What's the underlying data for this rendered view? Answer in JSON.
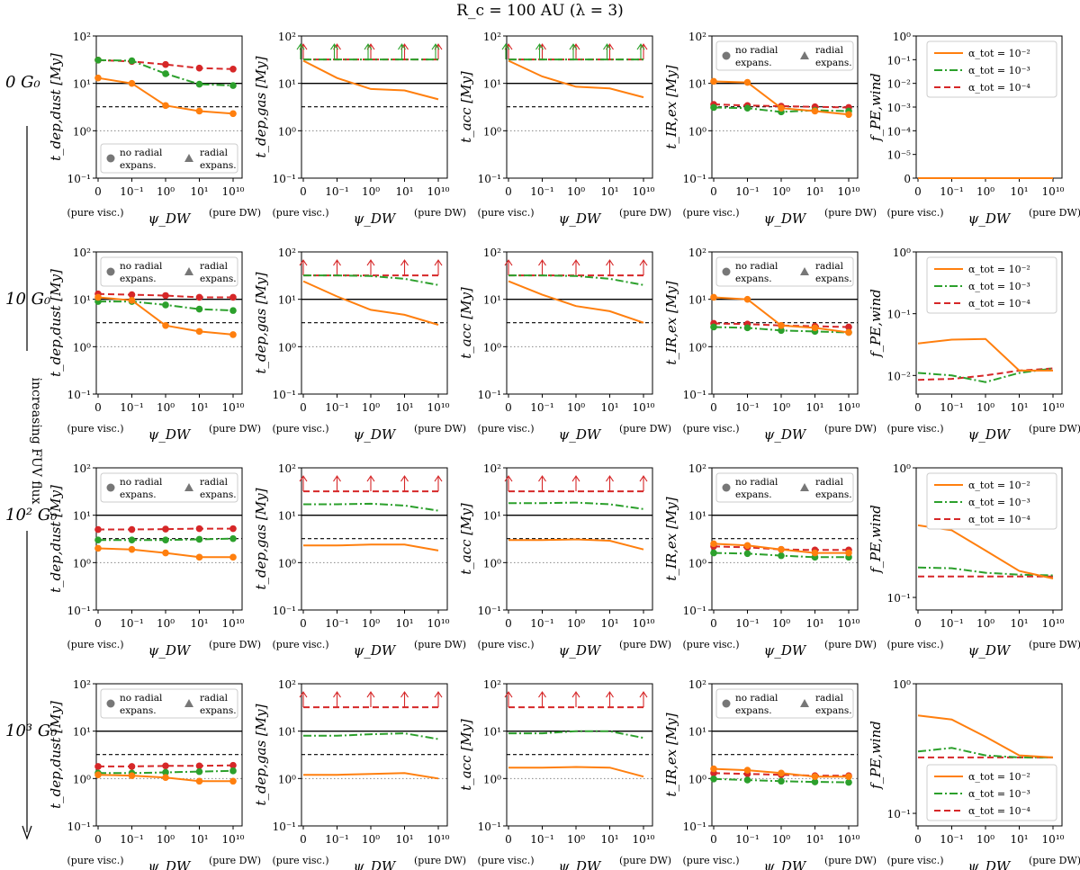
{
  "figure": {
    "title": "R_c = 100 AU (λ = 3)",
    "row_labels": [
      "0 G₀",
      "10 G₀",
      "10² G₀",
      "10³ G₀"
    ],
    "side_label": "increasing FUV flux",
    "x_ticks": [
      "0",
      "10⁻¹",
      "10⁰",
      "10¹",
      "10¹⁰"
    ],
    "x_edge_left": "(pure visc.)",
    "x_edge_right": "(pure DW)",
    "x_axis_label": "ψ_DW",
    "panel_ylabels": [
      "t_dep,dust [My]",
      "t_dep,gas [My]",
      "t_acc [My]",
      "t_IR,ex [My]",
      "f_PE,wind"
    ],
    "log_ticks": [
      "10⁻¹",
      "10⁰",
      "10¹",
      "10²"
    ],
    "fpe_row0_ticks": [
      "0",
      "10⁻⁵",
      "10⁻⁴",
      "10⁻³",
      "10⁻²",
      "10⁻¹",
      "10⁰"
    ],
    "marker_legend": [
      "no radial expans.",
      "radial expans."
    ],
    "alpha_legend": [
      "α_tot = 10⁻²",
      "α_tot = 10⁻³",
      "α_tot = 10⁻⁴"
    ]
  },
  "colors": {
    "a1e2": "#ff7f0e",
    "a1e3": "#2ca02c",
    "a1e4": "#d62728"
  },
  "chart_data": {
    "type": "line",
    "x": [
      "0",
      "1e-1",
      "1e0",
      "1e1",
      "1e10"
    ],
    "series_names": [
      "α_tot = 10⁻²",
      "α_tot = 10⁻³",
      "α_tot = 10⁻⁴"
    ],
    "reference_lines": {
      "solid": 10,
      "dashed": 3.2,
      "dotted": 1
    },
    "rows": [
      {
        "flux": "0 G0",
        "t_dep_dust": {
          "a1e2": [
            13,
            10,
            3.4,
            2.6,
            2.3
          ],
          "a1e3": [
            31,
            30,
            16,
            9.6,
            9.0
          ],
          "a1e4": [
            31,
            29,
            25,
            21,
            20
          ]
        },
        "t_dep_gas": {
          "a1e2": [
            30,
            13,
            7.6,
            7.1,
            4.6
          ],
          "a1e3": [
            32,
            32,
            32,
            32,
            32
          ],
          "a1e4": [
            32,
            32,
            32,
            32,
            32
          ],
          "lower_limits": [
            "a1e3",
            "a1e4"
          ]
        },
        "t_acc": {
          "a1e2": [
            30,
            14,
            8.5,
            7.8,
            5.1
          ],
          "a1e3": [
            32,
            32,
            32,
            32,
            32
          ],
          "a1e4": [
            32,
            32,
            32,
            32,
            32
          ],
          "lower_limits": [
            "a1e3",
            "a1e4"
          ]
        },
        "t_IR_ex": {
          "a1e2": [
            11,
            10.5,
            3.0,
            2.6,
            2.2
          ],
          "a1e3": [
            3.1,
            3.0,
            2.5,
            2.7,
            2.6
          ],
          "a1e4": [
            3.6,
            3.4,
            3.3,
            3.2,
            3.1
          ]
        },
        "f_PE_wind": {
          "a1e2": [
            0,
            0,
            0,
            0,
            0
          ],
          "a1e3": [
            0,
            0,
            0,
            0,
            0
          ],
          "a1e4": [
            0,
            0,
            0,
            0,
            0
          ]
        }
      },
      {
        "flux": "10 G0",
        "t_dep_dust": {
          "a1e2": [
            11,
            9.5,
            2.8,
            2.1,
            1.8
          ],
          "a1e3": [
            9.0,
            9.0,
            7.6,
            6.2,
            5.8
          ],
          "a1e4": [
            13,
            12.5,
            12,
            11,
            11
          ]
        },
        "t_dep_gas": {
          "a1e2": [
            24,
            11.5,
            6.0,
            4.7,
            2.9
          ],
          "a1e3": [
            32,
            32,
            31,
            27,
            20
          ],
          "a1e4": [
            32,
            32,
            32,
            32,
            32
          ],
          "lower_limits": [
            "a1e4"
          ]
        },
        "t_acc": {
          "a1e2": [
            24,
            12.5,
            7.2,
            5.6,
            3.2
          ],
          "a1e3": [
            32,
            32,
            31,
            27,
            20
          ],
          "a1e4": [
            32,
            32,
            32,
            32,
            32
          ],
          "lower_limits": [
            "a1e4"
          ]
        },
        "t_IR_ex": {
          "a1e2": [
            11,
            10,
            2.8,
            2.5,
            2.0
          ],
          "a1e3": [
            2.6,
            2.5,
            2.2,
            2.1,
            2.0
          ],
          "a1e4": [
            3.1,
            3.0,
            2.8,
            2.7,
            2.6
          ]
        },
        "f_PE_wind": {
          "a1e2": [
            0.033,
            0.038,
            0.039,
            0.012,
            0.012
          ],
          "a1e3": [
            0.011,
            0.01,
            0.0078,
            0.011,
            0.013
          ],
          "a1e4": [
            0.0085,
            0.0088,
            0.01,
            0.012,
            0.013
          ]
        }
      },
      {
        "flux": "100 G0",
        "t_dep_dust": {
          "a1e2": [
            2.0,
            1.9,
            1.6,
            1.3,
            1.3
          ],
          "a1e3": [
            3.0,
            3.0,
            3.0,
            3.1,
            3.2
          ],
          "a1e4": [
            5.0,
            5.0,
            5.1,
            5.2,
            5.2
          ]
        },
        "t_dep_gas": {
          "a1e2": [
            2.3,
            2.3,
            2.4,
            2.4,
            1.8
          ],
          "a1e3": [
            17,
            17,
            17.5,
            16,
            12.5
          ],
          "a1e4": [
            32,
            32,
            32,
            32,
            32
          ],
          "lower_limits": [
            "a1e4"
          ]
        },
        "t_acc": {
          "a1e2": [
            3.0,
            3.0,
            3.1,
            2.9,
            1.9
          ],
          "a1e3": [
            18,
            18,
            18.5,
            17,
            13.5
          ],
          "a1e4": [
            32,
            32,
            32,
            32,
            32
          ],
          "lower_limits": [
            "a1e4"
          ]
        },
        "t_IR_ex": {
          "a1e2": [
            2.5,
            2.3,
            1.9,
            1.6,
            1.6
          ],
          "a1e3": [
            1.6,
            1.55,
            1.4,
            1.3,
            1.3
          ],
          "a1e4": [
            2.2,
            2.1,
            1.9,
            1.85,
            1.85
          ]
        },
        "f_PE_wind": {
          "a1e2": [
            0.36,
            0.33,
            0.23,
            0.16,
            0.14
          ],
          "a1e3": [
            0.17,
            0.168,
            0.155,
            0.15,
            0.148
          ],
          "a1e4": [
            0.145,
            0.145,
            0.145,
            0.145,
            0.145
          ]
        }
      },
      {
        "flux": "1000 G0",
        "t_dep_dust": {
          "a1e2": [
            1.2,
            1.15,
            1.05,
            0.88,
            0.88
          ],
          "a1e3": [
            1.3,
            1.3,
            1.35,
            1.4,
            1.45
          ],
          "a1e4": [
            1.8,
            1.8,
            1.85,
            1.85,
            1.9
          ]
        },
        "t_dep_gas": {
          "a1e2": [
            1.2,
            1.2,
            1.25,
            1.3,
            1.0
          ],
          "a1e3": [
            8.0,
            8.0,
            8.6,
            9.0,
            6.8
          ],
          "a1e4": [
            32,
            32,
            32,
            32,
            32
          ],
          "lower_limits": [
            "a1e4"
          ]
        },
        "t_acc": {
          "a1e2": [
            1.7,
            1.7,
            1.75,
            1.7,
            1.1
          ],
          "a1e3": [
            9.0,
            9.0,
            10,
            10,
            7.2
          ],
          "a1e4": [
            32,
            32,
            32,
            32,
            32
          ],
          "lower_limits": [
            "a1e4"
          ]
        },
        "t_IR_ex": {
          "a1e2": [
            1.6,
            1.5,
            1.3,
            1.1,
            1.1
          ],
          "a1e3": [
            0.98,
            0.93,
            0.88,
            0.85,
            0.83
          ],
          "a1e4": [
            1.3,
            1.25,
            1.2,
            1.15,
            1.15
          ]
        },
        "f_PE_wind": {
          "a1e2": [
            0.57,
            0.53,
            0.39,
            0.28,
            0.27
          ],
          "a1e3": [
            0.3,
            0.32,
            0.28,
            0.27,
            0.27
          ],
          "a1e4": [
            0.27,
            0.27,
            0.27,
            0.27,
            0.27
          ]
        }
      }
    ]
  }
}
